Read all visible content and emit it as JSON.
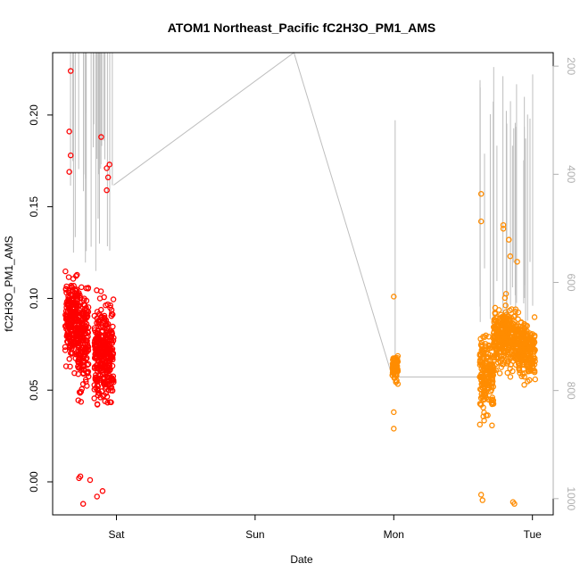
{
  "chart_data": {
    "type": "scatter",
    "title": "ATOM1 Northeast_Pacific fC2H3O_PM1_AMS",
    "xlabel": "Date",
    "ylabel": "fC2H3O_PM1_AMS",
    "x_ticks": [
      {
        "label": "Sat",
        "value": 1.0
      },
      {
        "label": "Sun",
        "value": 2.0
      },
      {
        "label": "Mon",
        "value": 3.0
      },
      {
        "label": "Tue",
        "value": 4.0
      }
    ],
    "xlim": [
      0.54,
      4.15
    ],
    "y_ticks": [
      0.0,
      0.05,
      0.1,
      0.15,
      0.2
    ],
    "y_tick_labels": [
      "0.00",
      "0.05",
      "0.10",
      "0.15",
      "0.20"
    ],
    "ylim": [
      -0.018,
      0.234
    ],
    "y2_ticks": [
      200,
      400,
      600,
      800,
      1000
    ],
    "y2_tick_labels": [
      "200",
      "400",
      "600",
      "800",
      "1000"
    ],
    "y2_lim": [
      1030,
      175
    ],
    "y2_reversed": true,
    "colors": {
      "series_red": "#ff0000",
      "series_orange": "#ff8c00",
      "altitude_line": "#bebebe",
      "altitude_axis": "#b0b0b0"
    },
    "series": [
      {
        "color": "#ff0000",
        "x_range": [
          0.63,
          0.98
        ],
        "clusters": [
          {
            "x": [
              0.63,
              0.72
            ],
            "center": 0.09,
            "spread": 0.03
          },
          {
            "x": [
              0.72,
              0.8
            ],
            "center": 0.075,
            "spread": 0.04
          },
          {
            "x": [
              0.84,
              0.98
            ],
            "center": 0.07,
            "spread": 0.035
          }
        ],
        "highlights": [
          {
            "x": 0.67,
            "y": 0.224
          },
          {
            "x": 0.66,
            "y": 0.191
          },
          {
            "x": 0.67,
            "y": 0.178
          },
          {
            "x": 0.66,
            "y": 0.169
          },
          {
            "x": 0.89,
            "y": 0.188
          },
          {
            "x": 0.95,
            "y": 0.173
          },
          {
            "x": 0.93,
            "y": 0.171
          },
          {
            "x": 0.94,
            "y": 0.166
          },
          {
            "x": 0.93,
            "y": 0.159
          },
          {
            "x": 0.74,
            "y": 0.003
          },
          {
            "x": 0.76,
            "y": -0.012
          },
          {
            "x": 0.86,
            "y": -0.008
          },
          {
            "x": 0.9,
            "y": -0.005
          },
          {
            "x": 0.81,
            "y": 0.001
          },
          {
            "x": 0.73,
            "y": 0.002
          }
        ]
      },
      {
        "color": "#ff8c00",
        "x_range": [
          2.99,
          4.02
        ],
        "clusters": [
          {
            "x": [
              2.99,
              3.03
            ],
            "center": 0.062,
            "spread": 0.01
          },
          {
            "x": [
              3.62,
              3.72
            ],
            "center": 0.06,
            "spread": 0.028
          },
          {
            "x": [
              3.72,
              3.9
            ],
            "center": 0.078,
            "spread": 0.022
          },
          {
            "x": [
              3.9,
              4.02
            ],
            "center": 0.072,
            "spread": 0.02
          }
        ],
        "highlights": [
          {
            "x": 3.0,
            "y": 0.101
          },
          {
            "x": 3.0,
            "y": 0.029
          },
          {
            "x": 3.0,
            "y": 0.038
          },
          {
            "x": 3.63,
            "y": 0.157
          },
          {
            "x": 3.63,
            "y": 0.142
          },
          {
            "x": 3.63,
            "y": -0.007
          },
          {
            "x": 3.64,
            "y": -0.01
          },
          {
            "x": 3.79,
            "y": 0.14
          },
          {
            "x": 3.79,
            "y": 0.138
          },
          {
            "x": 3.83,
            "y": 0.132
          },
          {
            "x": 3.86,
            "y": -0.011
          },
          {
            "x": 3.87,
            "y": -0.012
          },
          {
            "x": 3.84,
            "y": 0.123
          },
          {
            "x": 3.89,
            "y": 0.12
          }
        ]
      }
    ],
    "altitude_line": {
      "color": "#bebebe",
      "points": [
        {
          "x": 0.98,
          "y2": 420
        },
        {
          "x": 2.28,
          "y2": 175
        },
        {
          "x": 2.99,
          "y2": 775
        },
        {
          "x": 3.62,
          "y2": 775
        }
      ]
    }
  }
}
